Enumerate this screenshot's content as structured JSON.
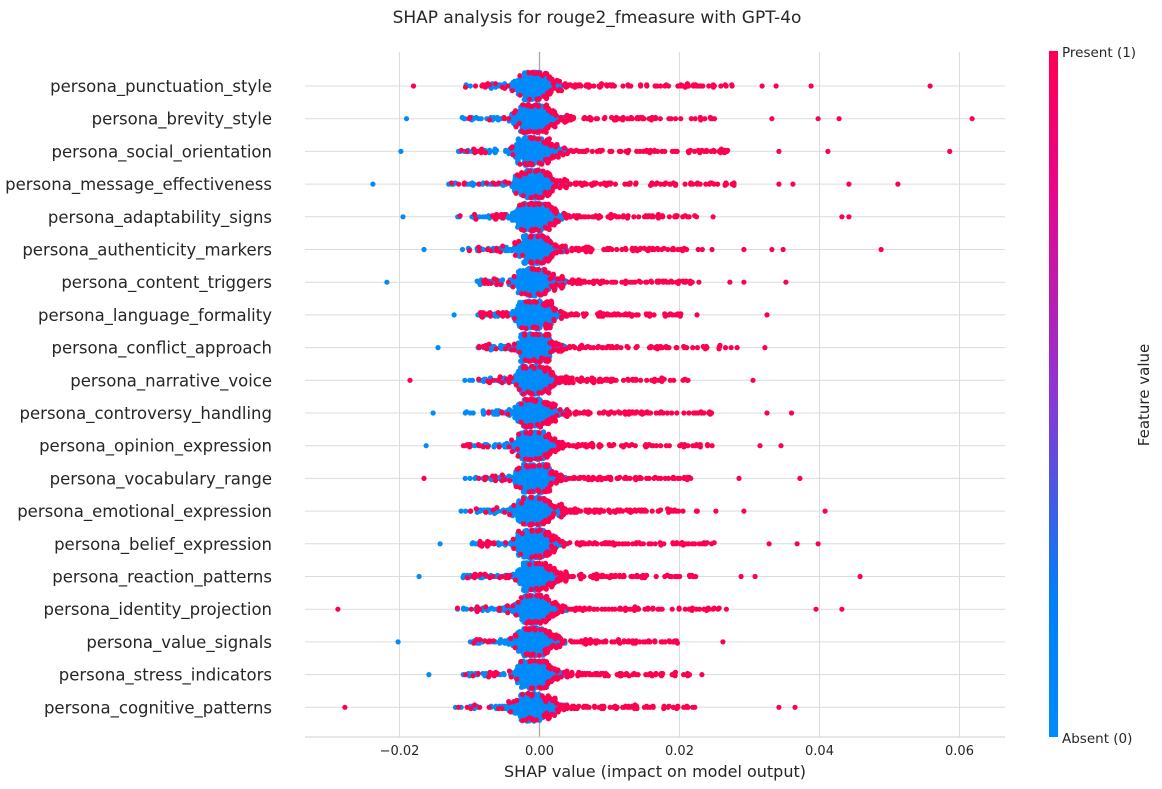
{
  "chart_data": {
    "type": "scatter",
    "subtype": "shap-beeswarm",
    "title": "SHAP analysis for rouge2_fmeasure with GPT-4o",
    "xlabel": "SHAP value (impact on model output)",
    "xlim": [
      -0.0335,
      0.0665
    ],
    "x_ticks": [
      -0.02,
      0.0,
      0.02,
      0.04,
      0.06
    ],
    "x_tick_labels": [
      "−0.02",
      "0.00",
      "0.02",
      "0.04",
      "0.06"
    ],
    "grid": true,
    "colorbar": {
      "title": "Feature value",
      "high_label": "Present (1)",
      "low_label": "Absent (0)",
      "high_color": "#ff0051",
      "mid_color": "#8d35d3",
      "low_color": "#008bfb"
    },
    "features": [
      {
        "name": "persona_punctuation_style",
        "min": -0.018,
        "max": 0.0558,
        "pos_spread": 0.027,
        "neg_spread": 0.011,
        "outliers": [
          0.0318,
          0.0338,
          0.0388,
          0.0558
        ]
      },
      {
        "name": "persona_brevity_style",
        "min": -0.019,
        "max": 0.0618,
        "pos_spread": 0.026,
        "neg_spread": 0.012,
        "outliers": [
          0.0332,
          0.0398,
          0.0428,
          0.0618
        ]
      },
      {
        "name": "persona_social_orientation",
        "min": -0.0198,
        "max": 0.0586,
        "pos_spread": 0.028,
        "neg_spread": 0.012,
        "outliers": [
          0.0342,
          0.0412,
          0.0586
        ]
      },
      {
        "name": "persona_message_effectiveness",
        "min": -0.0238,
        "max": 0.0512,
        "pos_spread": 0.027,
        "neg_spread": 0.013,
        "outliers": [
          0.0342,
          0.0362,
          0.0442,
          0.0512
        ]
      },
      {
        "name": "persona_adaptability_signs",
        "min": -0.0195,
        "max": 0.0442,
        "pos_spread": 0.022,
        "neg_spread": 0.012,
        "outliers": [
          0.0248,
          0.0432,
          0.0442
        ]
      },
      {
        "name": "persona_authenticity_markers",
        "min": -0.0165,
        "max": 0.0488,
        "pos_spread": 0.024,
        "neg_spread": 0.011,
        "outliers": [
          0.0292,
          0.0332,
          0.0348,
          0.0488
        ]
      },
      {
        "name": "persona_content_triggers",
        "min": -0.0218,
        "max": 0.0352,
        "pos_spread": 0.022,
        "neg_spread": 0.009,
        "outliers": [
          0.0272,
          0.0292,
          0.0352
        ]
      },
      {
        "name": "persona_language_formality",
        "min": -0.0122,
        "max": 0.0325,
        "pos_spread": 0.02,
        "neg_spread": 0.009,
        "outliers": [
          0.0225,
          0.0325
        ]
      },
      {
        "name": "persona_conflict_approach",
        "min": -0.0145,
        "max": 0.0322,
        "pos_spread": 0.028,
        "neg_spread": 0.009,
        "outliers": [
          0.0322
        ]
      },
      {
        "name": "persona_narrative_voice",
        "min": -0.0185,
        "max": 0.0305,
        "pos_spread": 0.021,
        "neg_spread": 0.011,
        "outliers": [
          0.0305
        ]
      },
      {
        "name": "persona_controversy_handling",
        "min": -0.0152,
        "max": 0.036,
        "pos_spread": 0.024,
        "neg_spread": 0.011,
        "outliers": [
          0.0325,
          0.036
        ]
      },
      {
        "name": "persona_opinion_expression",
        "min": -0.0162,
        "max": 0.0345,
        "pos_spread": 0.024,
        "neg_spread": 0.011,
        "outliers": [
          0.0315,
          0.0345
        ]
      },
      {
        "name": "persona_vocabulary_range",
        "min": -0.0165,
        "max": 0.0372,
        "pos_spread": 0.021,
        "neg_spread": 0.011,
        "outliers": [
          0.0285,
          0.0372
        ]
      },
      {
        "name": "persona_emotional_expression",
        "min": -0.0112,
        "max": 0.0408,
        "pos_spread": 0.022,
        "neg_spread": 0.011,
        "outliers": [
          0.0252,
          0.0292,
          0.0408
        ]
      },
      {
        "name": "persona_belief_expression",
        "min": -0.0142,
        "max": 0.0398,
        "pos_spread": 0.025,
        "neg_spread": 0.01,
        "outliers": [
          0.0328,
          0.0368,
          0.0398
        ]
      },
      {
        "name": "persona_reaction_patterns",
        "min": -0.0172,
        "max": 0.0458,
        "pos_spread": 0.022,
        "neg_spread": 0.011,
        "outliers": [
          0.0288,
          0.0308,
          0.0458
        ]
      },
      {
        "name": "persona_identity_projection",
        "min": -0.0288,
        "max": 0.0432,
        "pos_spread": 0.026,
        "neg_spread": 0.012,
        "outliers": [
          0.0395,
          0.0432
        ]
      },
      {
        "name": "persona_value_signals",
        "min": -0.0202,
        "max": 0.0262,
        "pos_spread": 0.02,
        "neg_spread": 0.01,
        "outliers": [
          0.0262
        ]
      },
      {
        "name": "persona_stress_indicators",
        "min": -0.0158,
        "max": 0.0232,
        "pos_spread": 0.021,
        "neg_spread": 0.011,
        "outliers": [
          0.0232
        ]
      },
      {
        "name": "persona_cognitive_patterns",
        "min": -0.0278,
        "max": 0.0365,
        "pos_spread": 0.022,
        "neg_spread": 0.012,
        "outliers": [
          0.0342,
          0.0365
        ]
      }
    ]
  }
}
